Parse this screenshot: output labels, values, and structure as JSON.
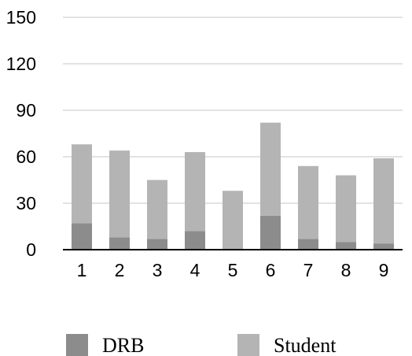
{
  "chart_data": {
    "type": "bar",
    "stacked": true,
    "categories": [
      "1",
      "2",
      "3",
      "4",
      "5",
      "6",
      "7",
      "8",
      "9"
    ],
    "series": [
      {
        "name": "DRB",
        "color": "#8c8c8c",
        "values": [
          17,
          8,
          7,
          12,
          0,
          22,
          7,
          5,
          4
        ]
      },
      {
        "name": "Student",
        "color": "#b4b4b4",
        "values": [
          51,
          56,
          38,
          51,
          38,
          60,
          47,
          43,
          55
        ]
      }
    ],
    "yticks": [
      "0",
      "30",
      "60",
      "90",
      "120",
      "150"
    ],
    "ylim": [
      0,
      150
    ],
    "grid": true,
    "legend_position": "bottom"
  }
}
